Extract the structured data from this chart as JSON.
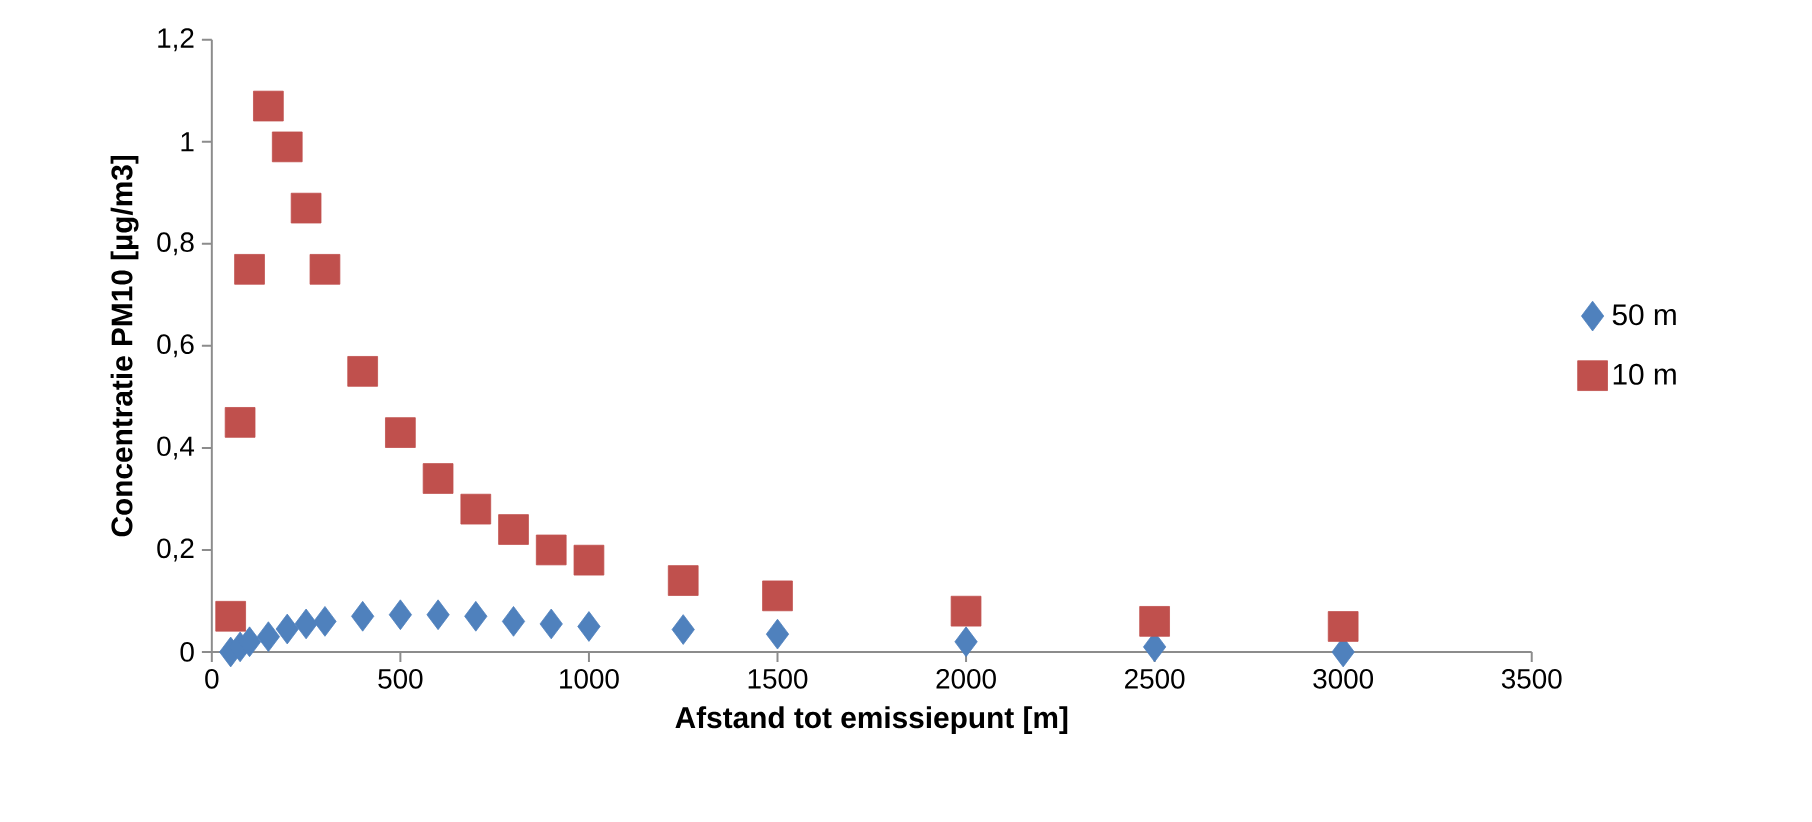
{
  "chart_data": {
    "type": "scatter",
    "xlabel": "Afstand tot emissiepunt [m]",
    "ylabel": "Concentratie PM10 [µg/m3]",
    "x": [
      50,
      75,
      100,
      150,
      200,
      250,
      300,
      400,
      500,
      600,
      700,
      800,
      900,
      1000,
      1250,
      1500,
      2000,
      2500,
      3000
    ],
    "series": [
      {
        "name": "50 m",
        "color": "#4f81bd",
        "marker": "diamond",
        "values": [
          0.0,
          0.01,
          0.02,
          0.03,
          0.045,
          0.055,
          0.06,
          0.07,
          0.073,
          0.073,
          0.07,
          0.06,
          0.055,
          0.05,
          0.044,
          0.035,
          0.02,
          0.01,
          0.0
        ]
      },
      {
        "name": "10 m",
        "color": "#c0504d",
        "marker": "square",
        "values": [
          0.07,
          0.45,
          0.75,
          1.07,
          0.99,
          0.87,
          0.75,
          0.55,
          0.43,
          0.34,
          0.28,
          0.24,
          0.2,
          0.18,
          0.14,
          0.11,
          0.08,
          0.06,
          0.05
        ]
      }
    ],
    "xlim": [
      0,
      3500
    ],
    "xticks": [
      0,
      500,
      1000,
      1500,
      2000,
      2500,
      3000,
      3500
    ],
    "ylim": [
      0,
      1.2
    ],
    "yticks": [
      0,
      {
        "value": 0.2,
        "label": "0,2"
      },
      {
        "value": 0.4,
        "label": "0,4"
      },
      {
        "value": 0.6,
        "label": "0,6"
      },
      {
        "value": 0.8,
        "label": "0,8"
      },
      1,
      {
        "value": 1.2,
        "label": "1,2"
      }
    ],
    "grid": false,
    "legend": "right"
  }
}
